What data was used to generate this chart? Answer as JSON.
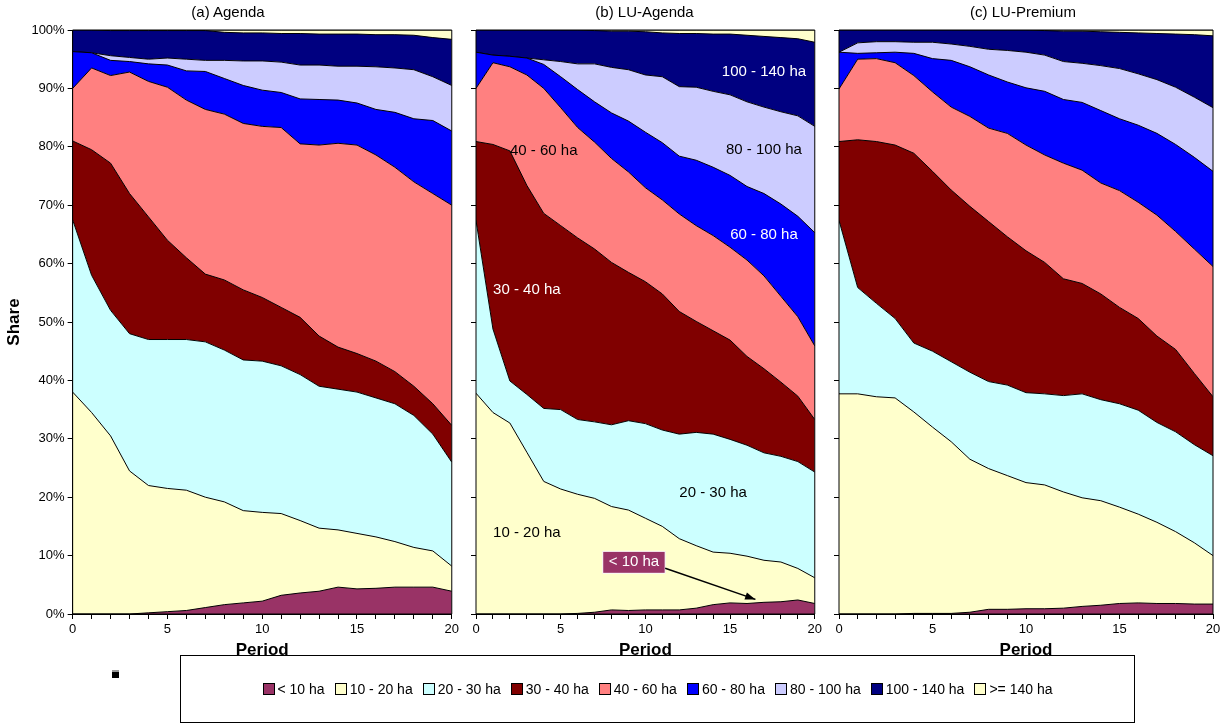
{
  "chart_data": [
    {
      "type": "area",
      "title": "(a) Agenda",
      "xlabel": "Period",
      "ylabel": "Share",
      "stacked": true,
      "legend": "bottom",
      "grid": false,
      "x": [
        0,
        1,
        2,
        3,
        4,
        5,
        6,
        7,
        8,
        9,
        10,
        11,
        12,
        13,
        14,
        15,
        16,
        17,
        18,
        19,
        20
      ],
      "xlim": [
        0,
        20
      ],
      "xticks": [
        0,
        {
          "value": 1,
          "label": null
        },
        {
          "value": 2,
          "label": null
        },
        {
          "value": 3,
          "label": null
        },
        {
          "value": 4,
          "label": null
        },
        5,
        {
          "value": 6,
          "label": null
        },
        {
          "value": 7,
          "label": null
        },
        {
          "value": 8,
          "label": null
        },
        {
          "value": 9,
          "label": null
        },
        10,
        {
          "value": 11,
          "label": null
        },
        {
          "value": 12,
          "label": null
        },
        {
          "value": 13,
          "label": null
        },
        {
          "value": 14,
          "label": null
        },
        15,
        {
          "value": 16,
          "label": null
        },
        {
          "value": 17,
          "label": null
        },
        {
          "value": 18,
          "label": null
        },
        {
          "value": 19,
          "label": null
        },
        20
      ],
      "ylim": [
        0,
        100
      ],
      "yticks": [
        {
          "value": 0,
          "label": "0%"
        },
        {
          "value": 10,
          "label": "10%"
        },
        {
          "value": 20,
          "label": "20%"
        },
        {
          "value": 30,
          "label": "30%"
        },
        {
          "value": 40,
          "label": "40%"
        },
        {
          "value": 50,
          "label": "50%"
        },
        {
          "value": 60,
          "label": "60%"
        },
        {
          "value": 70,
          "label": "70%"
        },
        {
          "value": 80,
          "label": "80%"
        },
        {
          "value": 90,
          "label": "90%"
        },
        {
          "value": 100,
          "label": "100%"
        }
      ],
      "series": [
        {
          "name": "< 10 ha",
          "color": "#993366",
          "values": [
            0,
            0,
            0,
            0,
            0.2,
            0.4,
            0.6,
            1.1,
            1.6,
            1.9,
            2.2,
            3.2,
            3.6,
            3.9,
            4.6,
            4.3,
            4.4,
            4.6,
            4.6,
            4.6,
            3.9
          ]
        },
        {
          "name": "10 - 20 ha",
          "color": "#ffffcc",
          "values": [
            38,
            34.5,
            30.5,
            24.5,
            21.8,
            21.1,
            20.6,
            18.9,
            17.6,
            15.8,
            15.2,
            14,
            12.4,
            10.8,
            9.8,
            9.5,
            8.8,
            7.8,
            6.8,
            6.2,
            4.3
          ]
        },
        {
          "name": "20 - 30 ha",
          "color": "#ccffff",
          "values": [
            29.5,
            23.5,
            21.5,
            23.5,
            25,
            25.5,
            25.8,
            26.6,
            26,
            25.8,
            25.9,
            25.3,
            25,
            24.3,
            24.1,
            24.2,
            23.8,
            23.6,
            22.6,
            20,
            17.8
          ]
        },
        {
          "name": "30 - 40 ha",
          "color": "#800000",
          "values": [
            13.5,
            21.5,
            25.2,
            24,
            21,
            17,
            14,
            11.6,
            12,
            12,
            10.9,
            10,
            9.8,
            8.6,
            7.2,
            6.6,
            6.3,
            5.5,
            5,
            5.2,
            6.3
          ]
        },
        {
          "name": "40 - 60 ha",
          "color": "#ff8080",
          "values": [
            9,
            14,
            15,
            20.8,
            23.2,
            26.2,
            27,
            28.2,
            28.4,
            28.5,
            29.3,
            30.8,
            29.7,
            32.7,
            34.9,
            35.7,
            35.3,
            35,
            35,
            36,
            37.7
          ]
        },
        {
          "name": "60 - 80 ha",
          "color": "#0000ff",
          "values": [
            6.3,
            2.6,
            2.6,
            1.8,
            3,
            3.8,
            5,
            6.5,
            6.1,
            6.5,
            6.2,
            6,
            7.7,
            7.8,
            7.4,
            7.2,
            7.8,
            9.4,
            10.8,
            12.5,
            12.7
          ]
        },
        {
          "name": "80 - 100 ha",
          "color": "#ccccff",
          "values": [
            0,
            0,
            0.8,
            0.7,
            0.8,
            1.2,
            2,
            1.9,
            3.1,
            4.2,
            5,
            5.2,
            5.8,
            5.9,
            5.8,
            6.3,
            7.3,
            7.6,
            8.4,
            7.5,
            7.8
          ]
        },
        {
          "name": "100 - 140 ha",
          "color": "#000080",
          "values": [
            3.7,
            3.9,
            4.3,
            4.6,
            4.9,
            4.7,
            4.9,
            5.1,
            4.8,
            4.8,
            4.8,
            4.9,
            5.4,
            5.3,
            5.5,
            5.5,
            5.5,
            5.7,
            5.9,
            6.7,
            7.9
          ]
        },
        {
          "name": ">= 140 ha",
          "color": "#ffffcc",
          "values": [
            0,
            0,
            0.1,
            0.1,
            0.1,
            0.1,
            0.1,
            0.1,
            0.4,
            0.5,
            0.5,
            0.6,
            0.6,
            0.7,
            0.7,
            0.7,
            0.8,
            0.8,
            0.9,
            1.3,
            1.6
          ]
        }
      ]
    },
    {
      "type": "area",
      "title": "(b) LU-Agenda",
      "xlabel": "Period",
      "stacked": true,
      "grid": false,
      "tick_labels": "x",
      "x": [
        0,
        1,
        2,
        3,
        4,
        5,
        6,
        7,
        8,
        9,
        10,
        11,
        12,
        13,
        14,
        15,
        16,
        17,
        18,
        19,
        20
      ],
      "xlim": [
        0,
        20
      ],
      "xticks": [
        0,
        {
          "value": 1,
          "label": null
        },
        {
          "value": 2,
          "label": null
        },
        {
          "value": 3,
          "label": null
        },
        {
          "value": 4,
          "label": null
        },
        5,
        {
          "value": 6,
          "label": null
        },
        {
          "value": 7,
          "label": null
        },
        {
          "value": 8,
          "label": null
        },
        {
          "value": 9,
          "label": null
        },
        10,
        {
          "value": 11,
          "label": null
        },
        {
          "value": 12,
          "label": null
        },
        {
          "value": 13,
          "label": null
        },
        {
          "value": 14,
          "label": null
        },
        15,
        {
          "value": 16,
          "label": null
        },
        {
          "value": 17,
          "label": null
        },
        {
          "value": 18,
          "label": null
        },
        {
          "value": 19,
          "label": null
        },
        20
      ],
      "ylim": [
        0,
        100
      ],
      "yticks": [
        {
          "value": 0,
          "label": null
        },
        {
          "value": 10,
          "label": null
        },
        {
          "value": 20,
          "label": null
        },
        {
          "value": 30,
          "label": null
        },
        {
          "value": 40,
          "label": null
        },
        {
          "value": 50,
          "label": null
        },
        {
          "value": 60,
          "label": null
        },
        {
          "value": 70,
          "label": null
        },
        {
          "value": 80,
          "label": null
        },
        {
          "value": 90,
          "label": null
        },
        {
          "value": 100,
          "label": null
        }
      ],
      "series": [
        {
          "name": "< 10 ha",
          "color": "#993366",
          "values": [
            0,
            0,
            0,
            0,
            0,
            0,
            0.1,
            0.3,
            0.7,
            0.6,
            0.7,
            0.7,
            0.7,
            1,
            1.6,
            1.9,
            1.8,
            2,
            2.1,
            2.4,
            1.8
          ]
        },
        {
          "name": "10 - 20 ha",
          "color": "#ffffcc",
          "values": [
            37.8,
            34.5,
            32.7,
            27.7,
            22.7,
            21.4,
            20.4,
            19.5,
            17.7,
            17.2,
            15.7,
            14.3,
            12.2,
            10.7,
            9,
            8.5,
            8.1,
            7.2,
            6.8,
            5.4,
            4.4
          ]
        },
        {
          "name": "20 - 30 ha",
          "color": "#ccffff",
          "values": [
            29.6,
            14.3,
            7.2,
            9.9,
            12.5,
            13.6,
            12.8,
            13.1,
            14,
            15.3,
            16.2,
            16.5,
            17.9,
            19.4,
            20.2,
            19.5,
            19,
            18.4,
            18.1,
            18.3,
            18.1
          ]
        },
        {
          "name": "30 - 40 ha",
          "color": "#800000",
          "values": [
            13.5,
            31.6,
            39.4,
            35.8,
            33.4,
            31.5,
            31.1,
            29.6,
            27.8,
            25.4,
            24.3,
            23.3,
            21,
            19,
            17.7,
            17,
            15.2,
            14.4,
            12.7,
            11.2,
            9
          ]
        },
        {
          "name": "40 - 60 ha",
          "color": "#ff8080",
          "values": [
            9.1,
            14,
            14.4,
            18.9,
            21.4,
            20.2,
            18.9,
            18.3,
            17.8,
            17.2,
            16.1,
            16.1,
            16.7,
            16.4,
            16.3,
            15.9,
            16.5,
            15.9,
            14.7,
            13.6,
            12.6
          ]
        },
        {
          "name": "60 - 80 ha",
          "color": "#0000ff",
          "values": [
            6.2,
            1.3,
            1.8,
            2.9,
            4.1,
            5.3,
            6.5,
            6.9,
            7.8,
            8.7,
            9.5,
            9.8,
            9.9,
            11.2,
            11.7,
            12.3,
            12.6,
            14.1,
            15.8,
            17.2,
            19.4
          ]
        },
        {
          "name": "80 - 100 ha",
          "color": "#ccccff",
          "values": [
            0,
            0,
            0,
            0,
            0.8,
            2.6,
            4.4,
            6.5,
            7.8,
            8.8,
            9.8,
            11.3,
            11.9,
            12.5,
            13,
            13.8,
            14.5,
            14.8,
            15.8,
            17.2,
            18.2
          ]
        },
        {
          "name": "100 - 140 ha",
          "color": "#000080",
          "values": [
            3.8,
            4.3,
            4.5,
            4.8,
            5.1,
            5.4,
            5.8,
            5.7,
            6.2,
            6.6,
            7.4,
            7.5,
            9.1,
            9.2,
            9.8,
            10.4,
            11.4,
            12.1,
            12.7,
            13.2,
            14.4
          ]
        },
        {
          "color": "#ffffcc",
          "values": [
            0,
            0,
            0,
            0,
            0,
            0,
            0,
            0.1,
            0.2,
            0.2,
            0.3,
            0.5,
            0.6,
            0.6,
            0.7,
            0.7,
            0.9,
            1.1,
            1.3,
            1.5,
            2.1
          ]
        }
      ]
    },
    {
      "type": "area",
      "title": "(c) LU-Premium",
      "xlabel": "Period",
      "stacked": true,
      "grid": false,
      "tick_labels": "x",
      "x": [
        0,
        1,
        2,
        3,
        4,
        5,
        6,
        7,
        8,
        9,
        10,
        11,
        12,
        13,
        14,
        15,
        16,
        17,
        18,
        19,
        20
      ],
      "xlim": [
        0,
        20
      ],
      "xticks": [
        0,
        {
          "value": 1,
          "label": null
        },
        {
          "value": 2,
          "label": null
        },
        {
          "value": 3,
          "label": null
        },
        {
          "value": 4,
          "label": null
        },
        5,
        {
          "value": 6,
          "label": null
        },
        {
          "value": 7,
          "label": null
        },
        {
          "value": 8,
          "label": null
        },
        {
          "value": 9,
          "label": null
        },
        10,
        {
          "value": 11,
          "label": null
        },
        {
          "value": 12,
          "label": null
        },
        {
          "value": 13,
          "label": null
        },
        {
          "value": 14,
          "label": null
        },
        15,
        {
          "value": 16,
          "label": null
        },
        {
          "value": 17,
          "label": null
        },
        {
          "value": 18,
          "label": null
        },
        {
          "value": 19,
          "label": null
        },
        20
      ],
      "ylim": [
        0,
        100
      ],
      "yticks": [
        {
          "value": 0,
          "label": null
        },
        {
          "value": 10,
          "label": null
        },
        {
          "value": 20,
          "label": null
        },
        {
          "value": 30,
          "label": null
        },
        {
          "value": 40,
          "label": null
        },
        {
          "value": 50,
          "label": null
        },
        {
          "value": 60,
          "label": null
        },
        {
          "value": 70,
          "label": null
        },
        {
          "value": 80,
          "label": null
        },
        {
          "value": 90,
          "label": null
        },
        {
          "value": 100,
          "label": null
        }
      ],
      "series": [
        {
          "color": "#993366",
          "values": [
            0,
            0,
            0,
            0,
            0.1,
            0.1,
            0.1,
            0.3,
            0.8,
            0.8,
            0.9,
            0.9,
            1,
            1.3,
            1.5,
            1.8,
            1.9,
            1.8,
            1.8,
            1.7,
            1.7
          ]
        },
        {
          "color": "#ffffcc",
          "values": [
            37.7,
            37.7,
            37.2,
            37,
            34.5,
            31.9,
            29.4,
            26.2,
            24.1,
            22.9,
            21.6,
            21.2,
            19.9,
            18.6,
            17.9,
            16.5,
            15.2,
            13.9,
            12.3,
            10.5,
            8.3
          ]
        },
        {
          "color": "#ccffff",
          "values": [
            29.7,
            18.2,
            16,
            13.6,
            11.8,
            13,
            13.7,
            14.9,
            14.9,
            15.5,
            15.4,
            15.6,
            16.5,
            17.8,
            17.3,
            17.7,
            17.8,
            17.1,
            17.1,
            16.8,
            17.1
          ]
        },
        {
          "color": "#800000",
          "values": [
            13.5,
            25.3,
            27.7,
            29.7,
            32.5,
            30.8,
            29.4,
            28.4,
            27.4,
            25.4,
            24.3,
            22.5,
            20,
            18.9,
            18.1,
            16.5,
            15.7,
            14.8,
            14.1,
            12.2,
            10.1
          ]
        },
        {
          "color": "#ff8080",
          "values": [
            9,
            13.8,
            14.2,
            14.1,
            13.3,
            13.6,
            14.2,
            15.4,
            16,
            17.7,
            18.1,
            18.4,
            19.8,
            19.4,
            19,
            20,
            19.9,
            20.7,
            20.2,
            21.3,
            22.3
          ]
        },
        {
          "color": "#0000ff",
          "values": [
            6.3,
            1,
            1,
            1.8,
            3.8,
            5.7,
            8,
            8.5,
            9.1,
            8.8,
            9.8,
            10.9,
            10.9,
            11.6,
            12.4,
            12.3,
            13.2,
            14,
            14.9,
            15.7,
            16.3
          ]
        },
        {
          "color": "#ccccff",
          "values": [
            0,
            1.8,
            1.9,
            1.8,
            1.9,
            2.8,
            2.8,
            3.5,
            4.4,
            5.4,
            6.1,
            6.2,
            6.5,
            6.7,
            7.7,
            8.6,
            8.8,
            9.2,
            9.8,
            10.3,
            10.9
          ]
        },
        {
          "color": "#000080",
          "values": [
            3.8,
            2.2,
            2,
            2,
            2.1,
            2.1,
            2.4,
            2.8,
            3.3,
            3.5,
            3.8,
            4.2,
            5.2,
            5.5,
            5.8,
            6.2,
            7,
            7.9,
            9.1,
            10.7,
            12.3
          ]
        },
        {
          "color": "#ffffcc",
          "values": [
            0,
            0,
            0,
            0,
            0,
            0,
            0,
            0,
            0,
            0,
            0,
            0.1,
            0.2,
            0.2,
            0.3,
            0.4,
            0.5,
            0.6,
            0.7,
            0.8,
            1
          ]
        }
      ]
    }
  ]
}
